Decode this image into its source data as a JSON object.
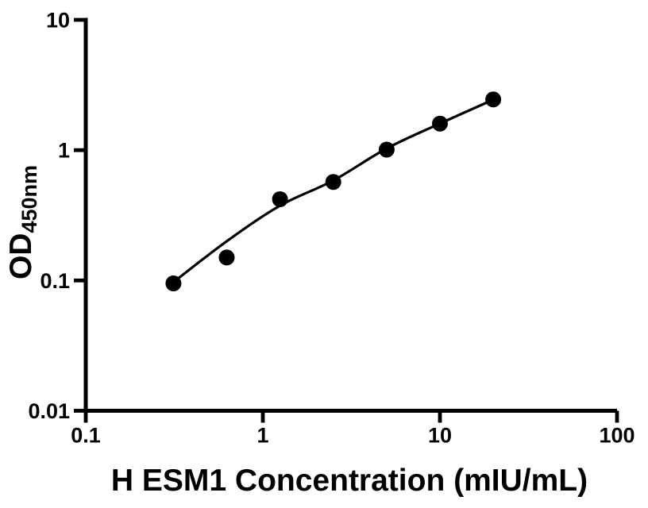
{
  "figure": {
    "background_color": "#ffffff",
    "ink_color": "#000000"
  },
  "chart_data": {
    "type": "scatter",
    "title": "",
    "xlabel": "H ESM1 Concentration (mIU/mL)",
    "ylabel": "OD",
    "ylabel_sub": "450nm",
    "x_scale": "log10",
    "y_scale": "log10",
    "xlim": [
      0.1,
      100
    ],
    "ylim": [
      0.01,
      10
    ],
    "x_tick_values": [
      0.1,
      1,
      10,
      100
    ],
    "x_tick_labels": [
      "0.1",
      "1",
      "10",
      "100"
    ],
    "y_tick_values": [
      0.01,
      0.1,
      1,
      10
    ],
    "y_tick_labels": [
      "0.01",
      "0.1",
      "1",
      "10"
    ],
    "grid": false,
    "legend": null,
    "series": [
      {
        "name": "standards",
        "marker": "filled-circle",
        "marker_color": "#000000",
        "x": [
          0.3125,
          0.625,
          1.25,
          2.5,
          5,
          10,
          20
        ],
        "y": [
          0.095,
          0.15,
          0.42,
          0.57,
          1.01,
          1.6,
          2.45
        ]
      }
    ],
    "fit_curve": {
      "name": "fitted-standard-curve",
      "line_color": "#000000",
      "x": [
        0.3125,
        0.625,
        1.25,
        2.5,
        5,
        10,
        20
      ],
      "y": [
        0.097,
        0.2,
        0.375,
        0.585,
        1.03,
        1.6,
        2.44
      ]
    }
  }
}
